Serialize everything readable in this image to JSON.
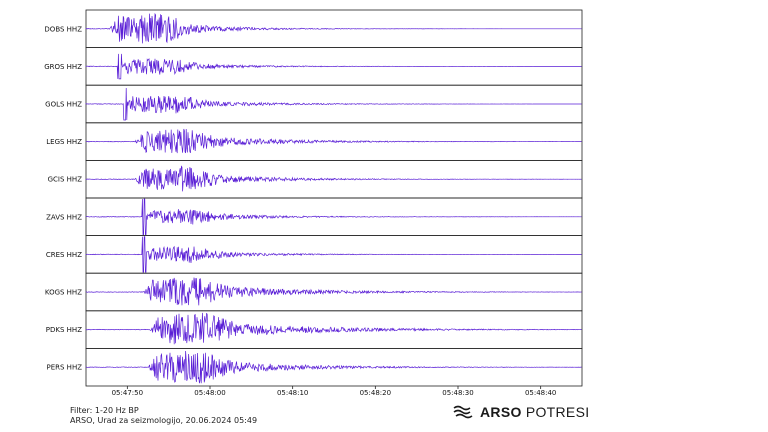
{
  "chart_data": {
    "type": "line",
    "title": "",
    "xlabel": "",
    "ylabel": "",
    "x_ticks": [
      "05:47:50",
      "05:48:00",
      "05:48:10",
      "05:48:20",
      "05:48:30",
      "05:48:40"
    ],
    "series_color": "#5a1fd6",
    "grid": false,
    "stations": [
      {
        "label": "DOBS HHZ",
        "onset_s": -2.2,
        "peak_amp": 0.95,
        "decay_s": 7,
        "spike": 0.0
      },
      {
        "label": "GROS HHZ",
        "onset_s": -1.2,
        "peak_amp": 0.5,
        "decay_s": 8,
        "spike": 0.7
      },
      {
        "label": "GOLS HHZ",
        "onset_s": -0.5,
        "peak_amp": 0.55,
        "decay_s": 9,
        "spike": 0.9
      },
      {
        "label": "LEGS HHZ",
        "onset_s": 0.9,
        "peak_amp": 0.75,
        "decay_s": 10,
        "spike": 0.0
      },
      {
        "label": "GCIS HHZ",
        "onset_s": 0.9,
        "peak_amp": 0.75,
        "decay_s": 9,
        "spike": 0.0
      },
      {
        "label": "ZAVS HHZ",
        "onset_s": 1.8,
        "peak_amp": 0.45,
        "decay_s": 9,
        "spike": 1.0
      },
      {
        "label": "CRES HHZ",
        "onset_s": 1.8,
        "peak_amp": 0.5,
        "decay_s": 8,
        "spike": 1.0
      },
      {
        "label": "KOGS HHZ",
        "onset_s": 1.9,
        "peak_amp": 0.85,
        "decay_s": 11,
        "spike": 0.0
      },
      {
        "label": "PDKS HHZ",
        "onset_s": 2.7,
        "peak_amp": 1.0,
        "decay_s": 12,
        "spike": 0.0
      },
      {
        "label": "PERS HHZ",
        "onset_s": 2.4,
        "peak_amp": 0.95,
        "decay_s": 10,
        "spike": 0.0
      }
    ]
  },
  "footer": {
    "filter": "Filter: 1-20 Hz BP",
    "credit": "ARSO, Urad za seizmologijo, 20.06.2024  05:49"
  },
  "brand": {
    "icon": "arso-logo-icon",
    "name_bold": "ARSO",
    "name_rest": " POTRESI"
  }
}
